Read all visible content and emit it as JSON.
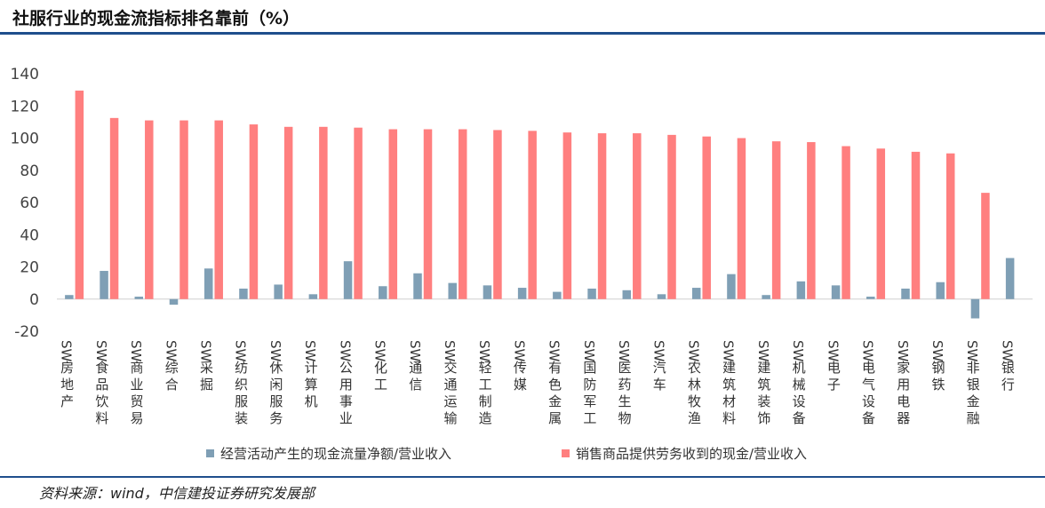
{
  "title": "社服行业的现金流指标排名靠前（%）",
  "source": "资料来源：wind，中信建投证券研究发展部",
  "colors": {
    "series1": "#7f9fb5",
    "series2": "#ff7f7f",
    "title_rule": "#1f4e8c"
  },
  "chart_data": {
    "type": "bar",
    "ylim": [
      -20,
      140
    ],
    "yticks": [
      -20,
      0,
      20,
      40,
      60,
      80,
      100,
      120,
      140
    ],
    "grid": false,
    "legend_position": "bottom",
    "categories": [
      "SW房地产",
      "SW食品饮料",
      "SW商业贸易",
      "SW综合",
      "SW采掘",
      "SW纺织服装",
      "SW休闲服务",
      "SW计算机",
      "SW公用事业",
      "SW化工",
      "SW通信",
      "SW交通运输",
      "SW轻工制造",
      "SW传媒",
      "SW有色金属",
      "SW国防军工",
      "SW医药生物",
      "SW汽车",
      "SW农林牧渔",
      "SW建筑材料",
      "SW建筑装饰",
      "SW机械设备",
      "SW电子",
      "SW电气设备",
      "SW家用电器",
      "SW钢铁",
      "SW非银金融",
      "SW银行"
    ],
    "series": [
      {
        "name": "经营活动产生的现金流量净额/营业收入",
        "values": [
          2.5,
          17.5,
          1.5,
          -3.5,
          19,
          6.5,
          9,
          3,
          23.5,
          8,
          16,
          10,
          8.5,
          7,
          4.5,
          6.5,
          5.5,
          3,
          7,
          15.5,
          2.5,
          11,
          8.5,
          1.5,
          6.5,
          10.5,
          -12,
          25.5
        ]
      },
      {
        "name": "销售商品提供劳务收到的现金/营业收入",
        "values": [
          129.5,
          112.5,
          111,
          111,
          111,
          108.5,
          107,
          107,
          106.5,
          105.5,
          105.5,
          105.5,
          105,
          104.5,
          103.5,
          103,
          103,
          102,
          101,
          100,
          98,
          97.5,
          95,
          93.5,
          91.5,
          90.5,
          66,
          null
        ]
      }
    ]
  }
}
